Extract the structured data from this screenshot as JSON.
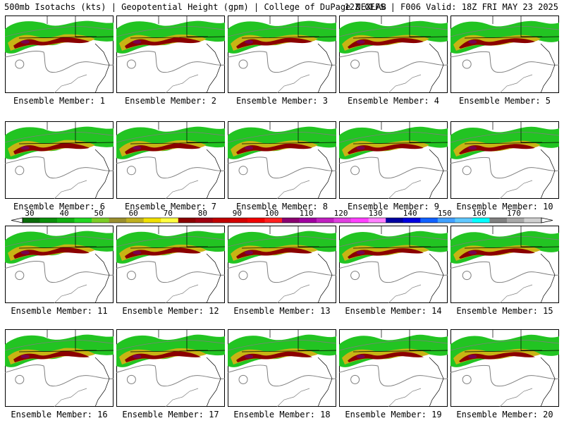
{
  "header": {
    "title": "500mb Isotachs (kts) | Geopotential Height (gpm) | College of DuPage NEXLAB",
    "run_info": "12Z GEFS | F006 Valid: 18Z FRI MAY 23 2025"
  },
  "panels": [
    "Ensemble Member: 1",
    "Ensemble Member: 2",
    "Ensemble Member: 3",
    "Ensemble Member: 4",
    "Ensemble Member: 5",
    "Ensemble Member: 6",
    "Ensemble Member: 7",
    "Ensemble Member: 8",
    "Ensemble Member: 9",
    "Ensemble Member: 10",
    "Ensemble Member: 11",
    "Ensemble Member: 12",
    "Ensemble Member: 13",
    "Ensemble Member: 14",
    "Ensemble Member: 15",
    "Ensemble Member: 16",
    "Ensemble Member: 17",
    "Ensemble Member: 18",
    "Ensemble Member: 19",
    "Ensemble Member: 20"
  ],
  "colorbar": {
    "ticks": [
      "30",
      "40",
      "50",
      "60",
      "70",
      "80",
      "90",
      "100",
      "110",
      "120",
      "130",
      "140",
      "150",
      "160",
      "170"
    ],
    "colors": [
      "#0a6b0a",
      "#0a8f0a",
      "#10b010",
      "#22d622",
      "#7ccd26",
      "#9a8f2e",
      "#bfb020",
      "#f0e000",
      "#ffff40",
      "#8b0000",
      "#a00010",
      "#c00000",
      "#d40000",
      "#f00000",
      "#ff2020",
      "#8b0070",
      "#a000a0",
      "#c020c0",
      "#e040e0",
      "#ff40ff",
      "#ff80ff",
      "#0000a0",
      "#0000e0",
      "#1060ff",
      "#40a0ff",
      "#60c8ff",
      "#00ffff",
      "#808080",
      "#a8a8a8",
      "#d0d0d0"
    ]
  },
  "map_colors": {
    "wind_40_60": "#22c422",
    "wind_60_80": "#c8b414",
    "wind_80_100": "#8b0000",
    "wind_core": "#7a0050",
    "height_contour": "#7f7f7f",
    "borders": "#000000"
  }
}
